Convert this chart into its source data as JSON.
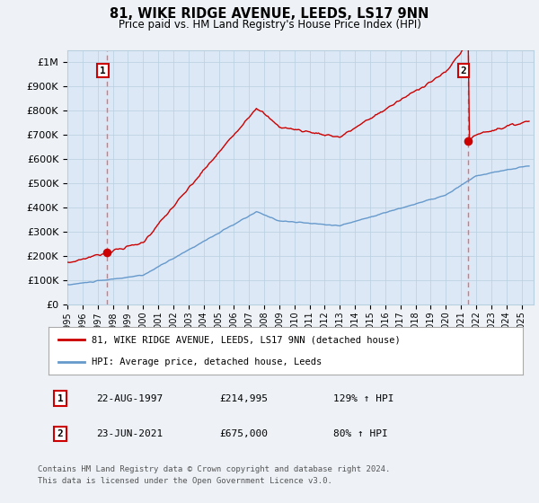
{
  "title": "81, WIKE RIDGE AVENUE, LEEDS, LS17 9NN",
  "subtitle": "Price paid vs. HM Land Registry's House Price Index (HPI)",
  "ylim": [
    0,
    1050000
  ],
  "yticks": [
    0,
    100000,
    200000,
    300000,
    400000,
    500000,
    600000,
    700000,
    800000,
    900000,
    1000000
  ],
  "ytick_labels": [
    "£0",
    "£100K",
    "£200K",
    "£300K",
    "£400K",
    "£500K",
    "£600K",
    "£700K",
    "£800K",
    "£900K",
    "£1M"
  ],
  "sale1_year": 1997.64,
  "sale1_price": 214995,
  "sale2_year": 2021.48,
  "sale2_price": 675000,
  "legend_line1": "81, WIKE RIDGE AVENUE, LEEDS, LS17 9NN (detached house)",
  "legend_line2": "HPI: Average price, detached house, Leeds",
  "table_row1_date": "22-AUG-1997",
  "table_row1_price": "£214,995",
  "table_row1_hpi": "129% ↑ HPI",
  "table_row2_date": "23-JUN-2021",
  "table_row2_price": "£675,000",
  "table_row2_hpi": "80% ↑ HPI",
  "footnote1": "Contains HM Land Registry data © Crown copyright and database right 2024.",
  "footnote2": "This data is licensed under the Open Government Licence v3.0.",
  "red_line_color": "#cc0000",
  "blue_line_color": "#6699cc",
  "bg_color": "#eef2f7",
  "plot_bg_color": "#dce8f5",
  "grid_color": "#b8cfe0",
  "dashed_color": "#ff6666"
}
